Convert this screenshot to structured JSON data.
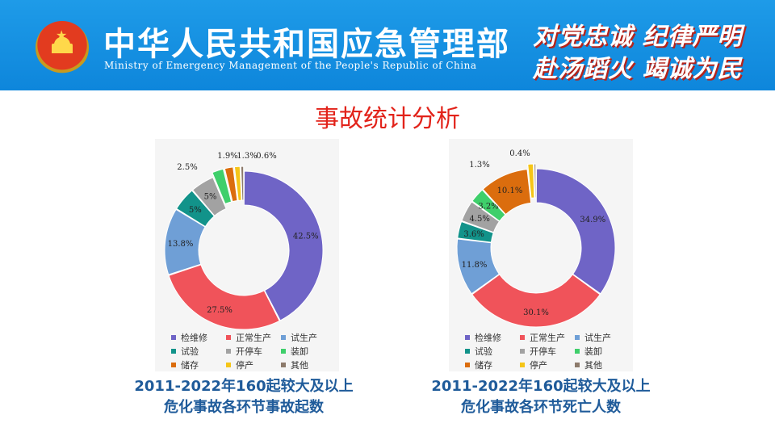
{
  "header": {
    "ministry_cn": "中华人民共和国应急管理部",
    "ministry_en": "Ministry of Emergency Management of the People's Republic of China",
    "slogan_line1": "对党忠诚 纪律严明",
    "slogan_line2": "赴汤蹈火 竭诚为民",
    "bg_color": "#1591e0",
    "slogan_shadow_color": "#b4241c"
  },
  "page": {
    "title": "事故统计分析",
    "title_color": "#e2231a"
  },
  "legend": {
    "categories": [
      "检维修",
      "正常生产",
      "试生产",
      "试验",
      "开停车",
      "装卸",
      "储存",
      "停产",
      "其他"
    ],
    "colors": [
      "#6f64c6",
      "#f0535a",
      "#6f9fd6",
      "#12938a",
      "#a2a2a2",
      "#3fcf6b",
      "#db6d0e",
      "#f5c518",
      "#8c7a6b"
    ]
  },
  "captions": {
    "left_line1": "2011-2022年160起较大及以上",
    "left_line2": "危化事故各环节事故起数",
    "right_line1": "2011-2022年160起较大及以上",
    "right_line2": "危化事故各环节死亡人数",
    "color": "#1f5b9a"
  },
  "chart_data": [
    {
      "type": "pie",
      "title": "",
      "categories": [
        "检维修",
        "正常生产",
        "试生产",
        "试验",
        "开停车",
        "装卸",
        "储存",
        "停产",
        "其他"
      ],
      "values": [
        42.5,
        27.5,
        13.8,
        5.0,
        5.0,
        2.5,
        1.9,
        1.3,
        0.6
      ],
      "labels": [
        "42.5%",
        "27.5%",
        "13.8%",
        "5%",
        "5%",
        "2.5%",
        "1.9%",
        "1.3%",
        "0.6%"
      ]
    },
    {
      "type": "pie",
      "title": "",
      "categories": [
        "检维修",
        "正常生产",
        "试生产",
        "试验",
        "开停车",
        "装卸",
        "储存",
        "停产",
        "其他"
      ],
      "values": [
        34.9,
        30.1,
        11.8,
        3.6,
        4.5,
        3.2,
        10.1,
        1.3,
        0.4
      ],
      "labels": [
        "34.9%",
        "30.1%",
        "11.8%",
        "3.6%",
        "4.5%",
        "3.2%",
        "10.1%",
        "1.3%",
        "0.4%"
      ]
    }
  ]
}
